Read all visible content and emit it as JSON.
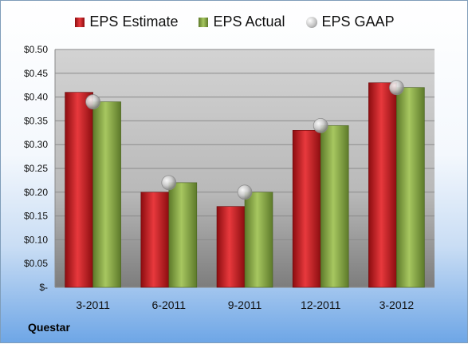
{
  "chart_data": {
    "type": "bar",
    "categories": [
      "3-2011",
      "6-2011",
      "9-2011",
      "12-2011",
      "3-2012"
    ],
    "series": [
      {
        "name": "EPS Estimate",
        "values": [
          0.41,
          0.2,
          0.17,
          0.33,
          0.43
        ],
        "color": "#c8181c"
      },
      {
        "name": "EPS Actual",
        "values": [
          0.39,
          0.22,
          0.2,
          0.34,
          0.42
        ],
        "color": "#8cb04a"
      },
      {
        "name": "EPS GAAP",
        "values": [
          0.39,
          0.22,
          0.2,
          0.34,
          0.42
        ],
        "color": "#b8b8b8",
        "marker": "circle"
      }
    ],
    "ylim": [
      0,
      0.5
    ],
    "yticks": [
      {
        "value": 0.5,
        "label": "$0.50"
      },
      {
        "value": 0.45,
        "label": "$0.45"
      },
      {
        "value": 0.4,
        "label": "$0.40"
      },
      {
        "value": 0.35,
        "label": "$0.35"
      },
      {
        "value": 0.3,
        "label": "$0.30"
      },
      {
        "value": 0.25,
        "label": "$0.25"
      },
      {
        "value": 0.2,
        "label": "$0.20"
      },
      {
        "value": 0.15,
        "label": "$0.15"
      },
      {
        "value": 0.1,
        "label": "$0.10"
      },
      {
        "value": 0.05,
        "label": "$0.05"
      },
      {
        "value": 0,
        "label": "$-"
      }
    ],
    "legend_position": "top",
    "grid": true
  },
  "footer": {
    "company": "Questar"
  }
}
